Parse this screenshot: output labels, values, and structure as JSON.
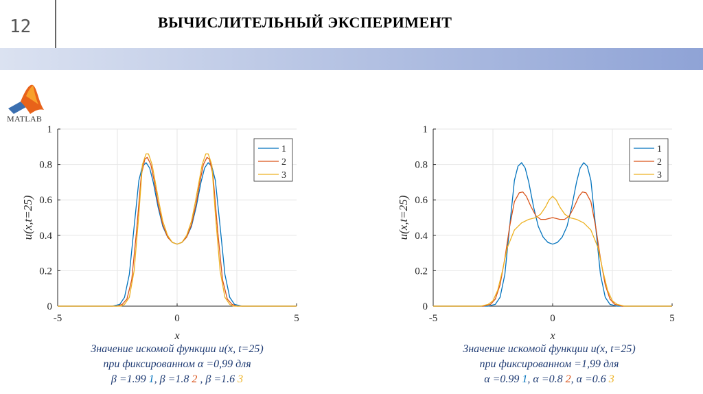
{
  "slide": {
    "number": "12",
    "title": "ВЫЧИСЛИТЕЛЬНЫЙ ЭКСПЕРИМЕНТ"
  },
  "logo": {
    "icon": "matlab-membrane-icon",
    "text": "MATLAB"
  },
  "colors": {
    "series1": "#0072bd",
    "series2": "#d95319",
    "series3": "#edb120",
    "caption": "#1f3b73"
  },
  "captions": [
    {
      "line1": "Значение искомой функции u(x, t=25)",
      "line2": "при фиксированном α =0,99 для",
      "line3_parts": [
        "β =1.99 ",
        "1",
        ", β =1.8 ",
        "2",
        " , β =1.6 ",
        "3"
      ]
    },
    {
      "line1": "Значение искомой функции u(x, t=25)",
      "line2": "при фиксированном  =1,99 для",
      "line3_parts": [
        "α =0.99  ",
        "1",
        ", α =0.8  ",
        "2",
        ", α =0.6  ",
        "3"
      ]
    }
  ],
  "chart_data": [
    {
      "type": "line",
      "xlabel": "x",
      "ylabel": "u(x,t=25)",
      "xlim": [
        -5,
        5
      ],
      "ylim": [
        0,
        1
      ],
      "xticks": [
        "-5",
        "0",
        "5"
      ],
      "yticks": [
        "0",
        "0.2",
        "0.4",
        "0.6",
        "0.8",
        "1"
      ],
      "grid": true,
      "legend_position": "top-right",
      "series": [
        {
          "name": "1",
          "x": [
            -5,
            -2.7,
            -2.4,
            -2.2,
            -2.0,
            -1.8,
            -1.6,
            -1.45,
            -1.3,
            -1.15,
            -1.0,
            -0.8,
            -0.6,
            -0.4,
            -0.2,
            0,
            0.2,
            0.4,
            0.6,
            0.8,
            1.0,
            1.15,
            1.3,
            1.45,
            1.6,
            1.8,
            2.0,
            2.2,
            2.4,
            2.7,
            5
          ],
          "y": [
            0,
            0,
            0.01,
            0.05,
            0.18,
            0.45,
            0.71,
            0.79,
            0.81,
            0.78,
            0.7,
            0.56,
            0.45,
            0.39,
            0.36,
            0.35,
            0.36,
            0.39,
            0.45,
            0.56,
            0.7,
            0.78,
            0.81,
            0.79,
            0.71,
            0.45,
            0.18,
            0.05,
            0.01,
            0,
            0
          ]
        },
        {
          "name": "2",
          "x": [
            -5,
            -2.5,
            -2.3,
            -2.1,
            -1.9,
            -1.7,
            -1.5,
            -1.35,
            -1.25,
            -1.1,
            -0.95,
            -0.8,
            -0.6,
            -0.4,
            -0.2,
            0,
            0.2,
            0.4,
            0.6,
            0.8,
            0.95,
            1.1,
            1.25,
            1.35,
            1.5,
            1.7,
            1.9,
            2.1,
            2.3,
            2.5,
            5
          ],
          "y": [
            0,
            0,
            0.01,
            0.04,
            0.15,
            0.42,
            0.74,
            0.83,
            0.84,
            0.8,
            0.7,
            0.58,
            0.46,
            0.39,
            0.36,
            0.35,
            0.36,
            0.39,
            0.46,
            0.58,
            0.7,
            0.8,
            0.84,
            0.83,
            0.74,
            0.42,
            0.15,
            0.04,
            0.01,
            0,
            0
          ]
        },
        {
          "name": "3",
          "x": [
            -5,
            -2.35,
            -2.2,
            -2.0,
            -1.8,
            -1.6,
            -1.45,
            -1.3,
            -1.2,
            -1.05,
            -0.9,
            -0.75,
            -0.6,
            -0.4,
            -0.2,
            0,
            0.2,
            0.4,
            0.6,
            0.75,
            0.9,
            1.05,
            1.2,
            1.3,
            1.45,
            1.6,
            1.8,
            2.0,
            2.2,
            2.35,
            5
          ],
          "y": [
            0,
            0,
            0.01,
            0.05,
            0.2,
            0.52,
            0.8,
            0.86,
            0.86,
            0.8,
            0.69,
            0.58,
            0.48,
            0.4,
            0.36,
            0.35,
            0.36,
            0.4,
            0.48,
            0.58,
            0.69,
            0.8,
            0.86,
            0.86,
            0.8,
            0.52,
            0.2,
            0.05,
            0.01,
            0,
            0
          ]
        }
      ]
    },
    {
      "type": "line",
      "xlabel": "x",
      "ylabel": "u(x,t=25)",
      "xlim": [
        -5,
        5
      ],
      "ylim": [
        0,
        1
      ],
      "xticks": [
        "-5",
        "0",
        "5"
      ],
      "yticks": [
        "0",
        "0.2",
        "0.4",
        "0.6",
        "0.8",
        "1"
      ],
      "grid": true,
      "legend_position": "top-right",
      "series": [
        {
          "name": "1",
          "x": [
            -5,
            -2.7,
            -2.4,
            -2.2,
            -2.0,
            -1.8,
            -1.6,
            -1.45,
            -1.3,
            -1.15,
            -1.0,
            -0.8,
            -0.6,
            -0.4,
            -0.2,
            0,
            0.2,
            0.4,
            0.6,
            0.8,
            1.0,
            1.15,
            1.3,
            1.45,
            1.6,
            1.8,
            2.0,
            2.2,
            2.4,
            2.7,
            5
          ],
          "y": [
            0,
            0,
            0.01,
            0.05,
            0.18,
            0.45,
            0.71,
            0.79,
            0.81,
            0.78,
            0.7,
            0.56,
            0.45,
            0.39,
            0.36,
            0.35,
            0.36,
            0.39,
            0.45,
            0.56,
            0.7,
            0.78,
            0.81,
            0.79,
            0.71,
            0.45,
            0.18,
            0.05,
            0.01,
            0,
            0
          ]
        },
        {
          "name": "2",
          "x": [
            -5,
            -2.9,
            -2.6,
            -2.4,
            -2.2,
            -2.0,
            -1.8,
            -1.6,
            -1.4,
            -1.25,
            -1.1,
            -0.9,
            -0.7,
            -0.5,
            -0.3,
            0,
            0.3,
            0.5,
            0.7,
            0.9,
            1.1,
            1.25,
            1.4,
            1.6,
            1.8,
            2.0,
            2.2,
            2.4,
            2.6,
            2.9,
            5
          ],
          "y": [
            0,
            0,
            0.01,
            0.04,
            0.12,
            0.27,
            0.45,
            0.59,
            0.64,
            0.645,
            0.62,
            0.56,
            0.51,
            0.49,
            0.49,
            0.5,
            0.49,
            0.49,
            0.51,
            0.56,
            0.62,
            0.645,
            0.64,
            0.59,
            0.45,
            0.27,
            0.12,
            0.04,
            0.01,
            0,
            0
          ]
        },
        {
          "name": "3",
          "x": [
            -5,
            -3.0,
            -2.7,
            -2.5,
            -2.3,
            -2.1,
            -1.9,
            -1.6,
            -1.3,
            -1.0,
            -0.7,
            -0.5,
            -0.3,
            -0.15,
            0,
            0.15,
            0.3,
            0.5,
            0.7,
            1.0,
            1.3,
            1.6,
            1.9,
            2.1,
            2.3,
            2.5,
            2.7,
            3.0,
            5
          ],
          "y": [
            0,
            0,
            0.01,
            0.03,
            0.09,
            0.2,
            0.33,
            0.43,
            0.47,
            0.49,
            0.5,
            0.52,
            0.56,
            0.6,
            0.62,
            0.6,
            0.56,
            0.52,
            0.5,
            0.49,
            0.47,
            0.43,
            0.33,
            0.2,
            0.09,
            0.03,
            0.01,
            0,
            0
          ]
        }
      ]
    }
  ]
}
